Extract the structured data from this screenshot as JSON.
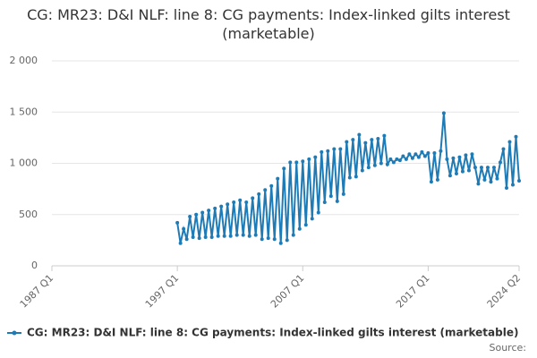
{
  "chart_data": {
    "type": "line",
    "title": "CG: MR23: D&I NLF: line 8: CG payments: Index-linked gilts interest (marketable)",
    "source": "Source:",
    "categories": [
      "1987 Q1",
      null,
      null,
      null,
      null,
      null,
      null,
      null,
      null,
      null,
      null,
      null,
      null,
      null,
      null,
      null,
      null,
      null,
      null,
      null,
      null,
      null,
      null,
      null,
      null,
      null,
      null,
      null,
      null,
      null,
      null,
      null,
      null,
      null,
      null,
      null,
      null,
      null,
      null,
      null,
      "1997 Q1",
      null,
      null,
      null,
      null,
      null,
      null,
      null,
      null,
      null,
      null,
      null,
      null,
      null,
      null,
      null,
      null,
      null,
      null,
      null,
      null,
      null,
      null,
      null,
      null,
      null,
      null,
      null,
      null,
      null,
      null,
      null,
      null,
      null,
      null,
      null,
      null,
      null,
      null,
      null,
      "2007 Q1",
      null,
      null,
      null,
      null,
      null,
      null,
      null,
      null,
      null,
      null,
      null,
      null,
      null,
      null,
      null,
      null,
      null,
      null,
      null,
      null,
      null,
      null,
      null,
      null,
      null,
      null,
      null,
      null,
      null,
      null,
      null,
      null,
      null,
      null,
      null,
      null,
      null,
      null,
      null,
      "2017 Q1",
      null,
      null,
      null,
      null,
      null,
      null,
      null,
      null,
      null,
      null,
      null,
      null,
      null,
      null,
      null,
      null,
      null,
      null,
      null,
      null,
      null,
      null,
      null,
      null,
      null,
      null,
      null,
      null,
      "2024 Q2"
    ],
    "series": [
      {
        "name": "CG: MR23: D&I NLF: line 8: CG payments: Index-linked gilts interest (marketable)",
        "color": "#1f7bb6",
        "values": [
          null,
          null,
          null,
          null,
          null,
          null,
          null,
          null,
          null,
          null,
          null,
          null,
          null,
          null,
          null,
          null,
          null,
          null,
          null,
          null,
          null,
          null,
          null,
          null,
          null,
          null,
          null,
          null,
          null,
          null,
          null,
          null,
          null,
          null,
          null,
          null,
          null,
          null,
          null,
          null,
          420,
          220,
          360,
          260,
          480,
          280,
          500,
          270,
          520,
          280,
          540,
          280,
          560,
          290,
          580,
          290,
          600,
          290,
          620,
          300,
          640,
          300,
          620,
          290,
          660,
          300,
          700,
          260,
          740,
          270,
          780,
          260,
          850,
          220,
          950,
          250,
          1010,
          300,
          1010,
          360,
          1020,
          400,
          1040,
          460,
          1060,
          520,
          1110,
          620,
          1120,
          680,
          1140,
          630,
          1140,
          700,
          1210,
          860,
          1230,
          870,
          1280,
          930,
          1200,
          960,
          1230,
          980,
          1240,
          1000,
          1270,
          990,
          1040,
          1010,
          1040,
          1030,
          1070,
          1040,
          1090,
          1050,
          1090,
          1060,
          1110,
          1070,
          1100,
          820,
          1100,
          840,
          1120,
          1490,
          1040,
          880,
          1050,
          900,
          1060,
          920,
          1080,
          930,
          1090,
          960,
          800,
          960,
          840,
          960,
          820,
          960,
          850,
          1010,
          1140,
          760,
          1210,
          790,
          1260,
          830
        ]
      }
    ],
    "ylim": [
      0,
      2000
    ],
    "yticks": [
      0,
      500,
      {
        "value": 1000,
        "label": "1 000"
      },
      {
        "value": 1500,
        "label": "1 500"
      },
      {
        "value": 2000,
        "label": "2 000"
      }
    ],
    "grid": true
  }
}
